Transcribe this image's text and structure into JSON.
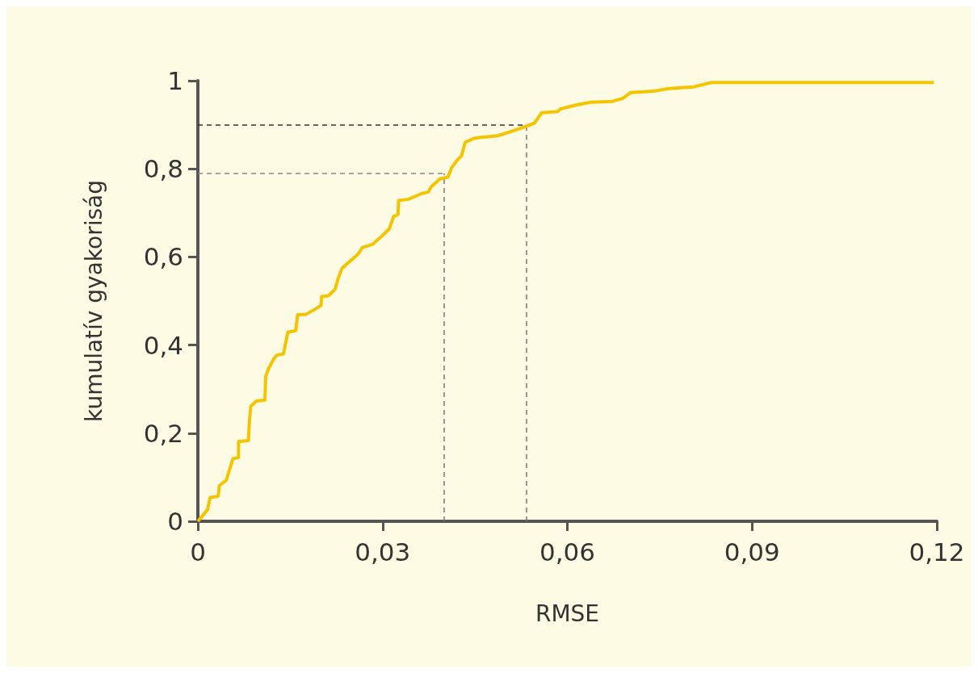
{
  "chart_data": {
    "type": "line",
    "xlabel": "RMSE",
    "ylabel": "kumulatív gyakoriság",
    "xlim": [
      0,
      0.12
    ],
    "ylim": [
      0,
      1
    ],
    "xticks": [
      0,
      {
        "value": 0.03,
        "label": "0,03"
      },
      {
        "value": 0.06,
        "label": "0,06"
      },
      {
        "value": 0.09,
        "label": "0,09"
      },
      {
        "value": 0.12,
        "label": "0,12"
      }
    ],
    "yticks": [
      0,
      {
        "value": 0.2,
        "label": "0,2"
      },
      {
        "value": 0.4,
        "label": "0,4"
      },
      {
        "value": 0.6,
        "label": "0,6"
      },
      {
        "value": 0.8,
        "label": "0,8"
      },
      1
    ],
    "marker": "none",
    "series": [
      {
        "color": "#f5c400",
        "x": [
          0,
          0.00155,
          0.002,
          0.0033,
          0.0035,
          0.0046,
          0.0057,
          0.0066,
          0.0066,
          0.0082,
          0.0084,
          0.0086,
          0.0095,
          0.0109,
          0.011,
          0.0115,
          0.0123,
          0.0128,
          0.0139,
          0.0146,
          0.0159,
          0.0162,
          0.0176,
          0.019,
          0.02,
          0.0201,
          0.0212,
          0.0223,
          0.0227,
          0.0234,
          0.026,
          0.0267,
          0.0284,
          0.03,
          0.0311,
          0.0318,
          0.0325,
          0.0326,
          0.0342,
          0.0364,
          0.0374,
          0.0379,
          0.0393,
          0.0406,
          0.0412,
          0.0421,
          0.0428,
          0.0434,
          0.0448,
          0.0463,
          0.0487,
          0.0509,
          0.0534,
          0.0547,
          0.0558,
          0.0584,
          0.0589,
          0.0615,
          0.0637,
          0.0673,
          0.069,
          0.0703,
          0.0739,
          0.0765,
          0.0805,
          0.0834,
          0.1195
        ],
        "values": [
          0,
          0.026,
          0.054,
          0.057,
          0.081,
          0.093,
          0.142,
          0.145,
          0.181,
          0.183,
          0.231,
          0.261,
          0.273,
          0.275,
          0.328,
          0.347,
          0.368,
          0.377,
          0.38,
          0.429,
          0.433,
          0.469,
          0.47,
          0.481,
          0.49,
          0.51,
          0.512,
          0.527,
          0.548,
          0.574,
          0.606,
          0.621,
          0.629,
          0.649,
          0.664,
          0.692,
          0.696,
          0.728,
          0.731,
          0.744,
          0.747,
          0.759,
          0.777,
          0.781,
          0.802,
          0.82,
          0.829,
          0.86,
          0.869,
          0.872,
          0.875,
          0.885,
          0.897,
          0.904,
          0.927,
          0.93,
          0.936,
          0.945,
          0.951,
          0.953,
          0.96,
          0.973,
          0.976,
          0.982,
          0.986,
          0.996,
          0.996
        ]
      }
    ],
    "ref_lines": [
      {
        "axis": "y",
        "value": 0.9,
        "color": "#333333",
        "line_style": "dashed"
      },
      {
        "axis": "x",
        "value": 0.0533,
        "color": "#777777",
        "line_style": "dashed"
      },
      {
        "axis": "y",
        "value": 0.79,
        "color": "#888888",
        "line_style": "dashed"
      },
      {
        "axis": "x",
        "value": 0.04,
        "color": "#777777",
        "line_style": "dashed"
      }
    ]
  }
}
